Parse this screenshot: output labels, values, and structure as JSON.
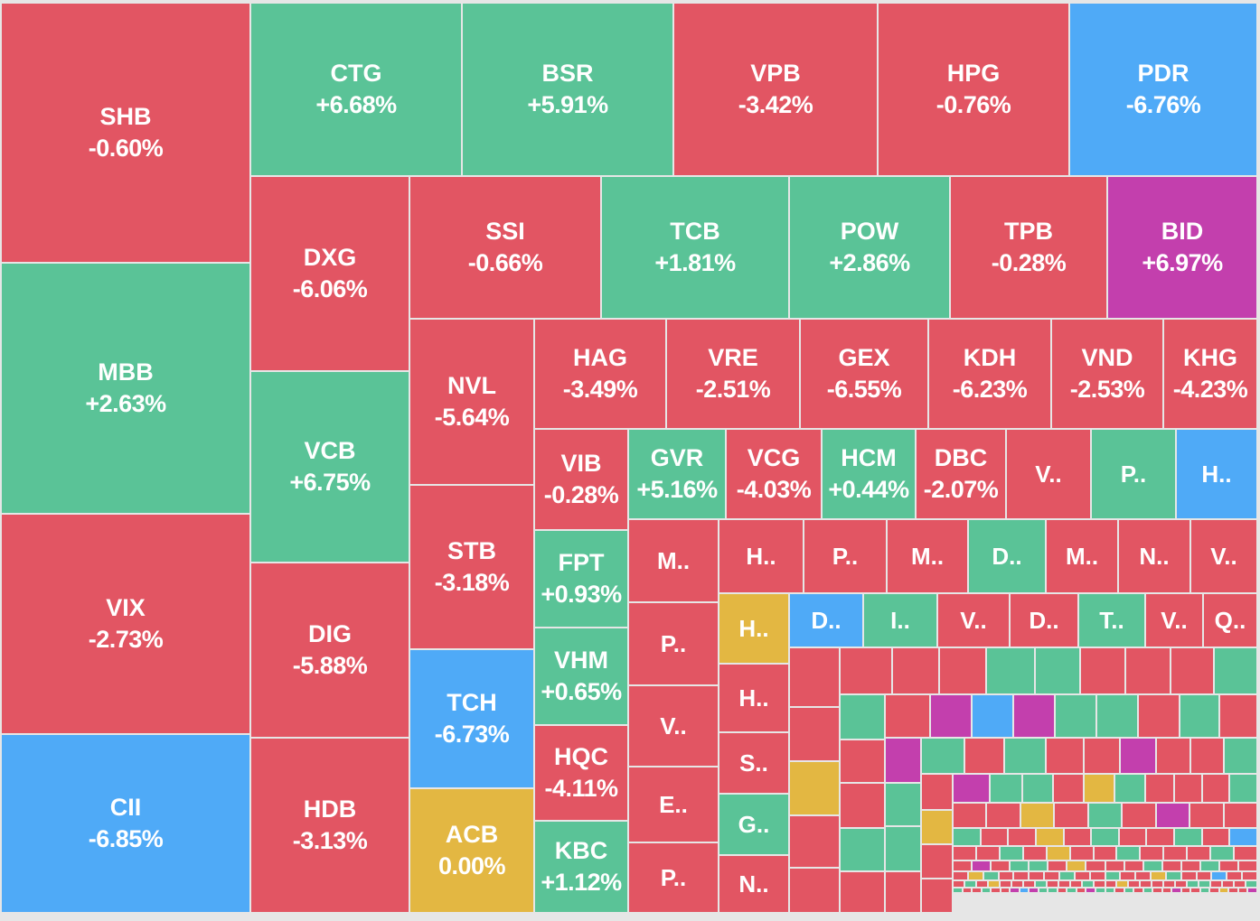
{
  "chart_data": {
    "type": "treemap",
    "title": "",
    "colors": {
      "up": "#5ac397",
      "down": "#e25563",
      "ceiling": "#c33fad",
      "floor": "#4faaf7",
      "reference": "#e3b742"
    },
    "tiles": [
      {
        "ticker": "SHB",
        "change": "-0.60%",
        "status": "down"
      },
      {
        "ticker": "MBB",
        "change": "+2.63%",
        "status": "up"
      },
      {
        "ticker": "VIX",
        "change": "-2.73%",
        "status": "down"
      },
      {
        "ticker": "CII",
        "change": "-6.85%",
        "status": "floor"
      },
      {
        "ticker": "CTG",
        "change": "+6.68%",
        "status": "up"
      },
      {
        "ticker": "BSR",
        "change": "+5.91%",
        "status": "up"
      },
      {
        "ticker": "VPB",
        "change": "-3.42%",
        "status": "down"
      },
      {
        "ticker": "HPG",
        "change": "-0.76%",
        "status": "down"
      },
      {
        "ticker": "PDR",
        "change": "-6.76%",
        "status": "floor"
      },
      {
        "ticker": "DXG",
        "change": "-6.06%",
        "status": "down"
      },
      {
        "ticker": "VCB",
        "change": "+6.75%",
        "status": "up"
      },
      {
        "ticker": "DIG",
        "change": "-5.88%",
        "status": "down"
      },
      {
        "ticker": "HDB",
        "change": "-3.13%",
        "status": "down"
      },
      {
        "ticker": "SSI",
        "change": "-0.66%",
        "status": "down"
      },
      {
        "ticker": "TCB",
        "change": "+1.81%",
        "status": "up"
      },
      {
        "ticker": "POW",
        "change": "+2.86%",
        "status": "up"
      },
      {
        "ticker": "TPB",
        "change": "-0.28%",
        "status": "down"
      },
      {
        "ticker": "BID",
        "change": "+6.97%",
        "status": "ceiling"
      },
      {
        "ticker": "NVL",
        "change": "-5.64%",
        "status": "down"
      },
      {
        "ticker": "STB",
        "change": "-3.18%",
        "status": "down"
      },
      {
        "ticker": "TCH",
        "change": "-6.73%",
        "status": "floor"
      },
      {
        "ticker": "ACB",
        "change": "0.00%",
        "status": "reference"
      },
      {
        "ticker": "HAG",
        "change": "-3.49%",
        "status": "down"
      },
      {
        "ticker": "VRE",
        "change": "-2.51%",
        "status": "down"
      },
      {
        "ticker": "GEX",
        "change": "-6.55%",
        "status": "down"
      },
      {
        "ticker": "KDH",
        "change": "-6.23%",
        "status": "down"
      },
      {
        "ticker": "VND",
        "change": "-2.53%",
        "status": "down"
      },
      {
        "ticker": "KHG",
        "change": "-4.23%",
        "status": "down"
      },
      {
        "ticker": "VIB",
        "change": "-0.28%",
        "status": "down"
      },
      {
        "ticker": "FPT",
        "change": "+0.93%",
        "status": "up"
      },
      {
        "ticker": "VHM",
        "change": "+0.65%",
        "status": "up"
      },
      {
        "ticker": "HQC",
        "change": "-4.11%",
        "status": "down"
      },
      {
        "ticker": "KBC",
        "change": "+1.12%",
        "status": "up"
      },
      {
        "ticker": "GVR",
        "change": "+5.16%",
        "status": "up"
      },
      {
        "ticker": "VCG",
        "change": "-4.03%",
        "status": "down"
      },
      {
        "ticker": "HCM",
        "change": "+0.44%",
        "status": "up"
      },
      {
        "ticker": "DBC",
        "change": "-2.07%",
        "status": "down"
      },
      {
        "ticker": "V..",
        "status": "down"
      },
      {
        "ticker": "P..",
        "status": "up"
      },
      {
        "ticker": "H..",
        "status": "floor"
      },
      {
        "ticker": "M..",
        "status": "down"
      },
      {
        "ticker": "P..",
        "status": "down"
      },
      {
        "ticker": "V..",
        "status": "down"
      },
      {
        "ticker": "E..",
        "status": "down"
      },
      {
        "ticker": "P..",
        "status": "down"
      },
      {
        "ticker": "H..",
        "status": "down"
      },
      {
        "ticker": "P..",
        "status": "down"
      },
      {
        "ticker": "M..",
        "status": "down"
      },
      {
        "ticker": "D..",
        "status": "up"
      },
      {
        "ticker": "M..",
        "status": "down"
      },
      {
        "ticker": "N..",
        "status": "down"
      },
      {
        "ticker": "V..",
        "status": "down"
      },
      {
        "ticker": "H..",
        "status": "reference"
      },
      {
        "ticker": "H..",
        "status": "down"
      },
      {
        "ticker": "S..",
        "status": "down"
      },
      {
        "ticker": "G..",
        "status": "up"
      },
      {
        "ticker": "N..",
        "status": "down"
      },
      {
        "ticker": "D..",
        "status": "floor"
      },
      {
        "ticker": "I..",
        "status": "up"
      },
      {
        "ticker": "V..",
        "status": "down"
      },
      {
        "ticker": "D..",
        "status": "down"
      },
      {
        "ticker": "T..",
        "status": "up"
      },
      {
        "ticker": "V..",
        "status": "down"
      },
      {
        "ticker": "Q..",
        "status": "down"
      }
    ],
    "unlabeled_status_codes": "RRYRRRRRGGRRRGGRRGRRPBPGGRGRPGGRGRGRRPRRGRYRRPGGRYGRRRGRRYRGRPRRGRRYRGRRGRBRRGRYRRGRRRGRRPRGGRYRRRGRRGRRRYGRRRRGRRGRRYGRRBRRRGRYRRRGRRRG",
    "status_code_legend": {
      "R": "down",
      "G": "up",
      "P": "ceiling",
      "B": "floor",
      "Y": "reference"
    }
  }
}
